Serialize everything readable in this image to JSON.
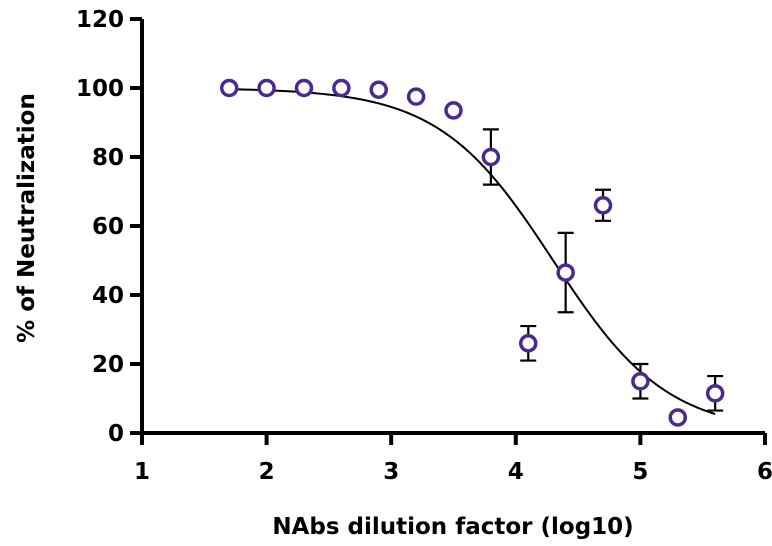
{
  "chart_data": {
    "type": "scatter",
    "xlabel": "NAbs dilution factor (log10)",
    "ylabel": "% of Neutralization",
    "xlim": [
      1,
      6
    ],
    "ylim": [
      0,
      120
    ],
    "x_ticks": [
      "1",
      "2",
      "3",
      "4",
      "5",
      "6"
    ],
    "y_ticks": [
      "0",
      "20",
      "40",
      "60",
      "80",
      "100",
      "120"
    ],
    "grid": false,
    "legend": "none",
    "marker": "open-circle",
    "colors": {
      "marker": "#4b2a8f",
      "fit_line": "#000000",
      "error_bar": "#000000",
      "axis": "#000000"
    },
    "series": [
      {
        "points": [
          {
            "x": 1.7,
            "y": 100,
            "err": 0
          },
          {
            "x": 2.0,
            "y": 100,
            "err": 0
          },
          {
            "x": 2.3,
            "y": 100,
            "err": 0
          },
          {
            "x": 2.6,
            "y": 100,
            "err": 0
          },
          {
            "x": 2.9,
            "y": 99.5,
            "err": 0
          },
          {
            "x": 3.2,
            "y": 97.5,
            "err": 0
          },
          {
            "x": 3.5,
            "y": 93.5,
            "err": 0
          },
          {
            "x": 3.8,
            "y": 80,
            "err": 8
          },
          {
            "x": 4.1,
            "y": 26,
            "err": 5
          },
          {
            "x": 4.4,
            "y": 46.5,
            "err": 11.5
          },
          {
            "x": 4.7,
            "y": 66,
            "err": 4.5
          },
          {
            "x": 5.0,
            "y": 15,
            "err": 5
          },
          {
            "x": 5.3,
            "y": 4.5,
            "err": 0
          },
          {
            "x": 5.6,
            "y": 11.5,
            "err": 5
          }
        ]
      }
    ],
    "fit": {
      "type": "sigmoid",
      "top": 100,
      "bottom": 0,
      "log_ic50": 4.3,
      "hill_slope": -0.95,
      "x_range": [
        1.7,
        5.6
      ]
    }
  }
}
